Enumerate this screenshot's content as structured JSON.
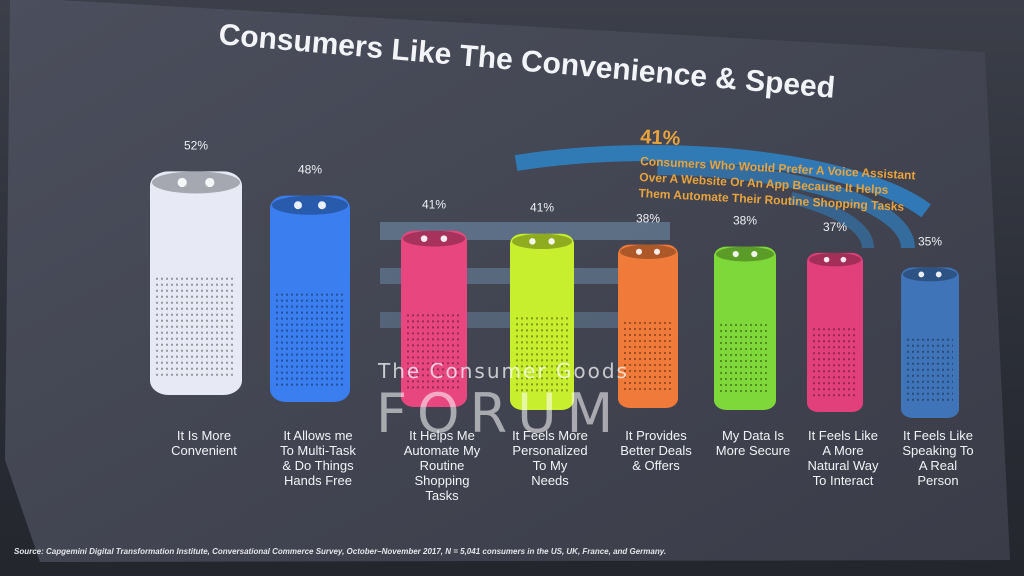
{
  "title": "Consumers Like The Convenience & Speed",
  "callout": {
    "value": "41%",
    "lines": [
      "Consumers Who Would Prefer A Voice Assistant",
      "Over A  Website Or An App Because It Helps",
      "Them Automate Their Routine Shopping Tasks"
    ]
  },
  "watermark": {
    "line1": "The Consumer Goods",
    "line2": "FORUM"
  },
  "source": "Source: Capgemini Digital Transformation Institute, Conversational Commerce Survey, October–November 2017, N = 5,041 consumers in the  US, UK, France, and Germany.",
  "colors": {
    "background": "#3b3e4a",
    "callout": "#e8a33c",
    "arc": "#2f7fc1"
  },
  "chart_data": {
    "type": "bar",
    "title": "Consumers Like The Convenience & Speed",
    "xlabel": "",
    "ylabel": "",
    "value_labels": [
      "52%",
      "48%",
      "41%",
      "41%",
      "38%",
      "38%",
      "37%",
      "35%"
    ],
    "categories": [
      [
        "It Is More",
        "Convenient"
      ],
      [
        "It Allows me",
        "To Multi-Task",
        "& Do Things",
        "Hands Free"
      ],
      [
        "It Helps Me",
        "Automate My",
        "Routine",
        "Shopping",
        "Tasks"
      ],
      [
        "It Feels More",
        "Personalized",
        "To My",
        "Needs"
      ],
      [
        "It Provides",
        "Better Deals",
        "& Offers"
      ],
      [
        "My Data Is",
        "More Secure"
      ],
      [
        "It Feels Like",
        "A More",
        "Natural Way",
        "To Interact"
      ],
      [
        "It Feels Like",
        "Speaking To",
        "A Real",
        "Person"
      ]
    ],
    "values": [
      52,
      48,
      41,
      41,
      38,
      38,
      37,
      35
    ],
    "bar_colors": [
      "#e7e9f5",
      "#3a7ef0",
      "#e8467e",
      "#c7ef2e",
      "#ef7a3a",
      "#7fd83a",
      "#e2407a",
      "#3f74b9"
    ],
    "grid": false,
    "legend": "none"
  }
}
